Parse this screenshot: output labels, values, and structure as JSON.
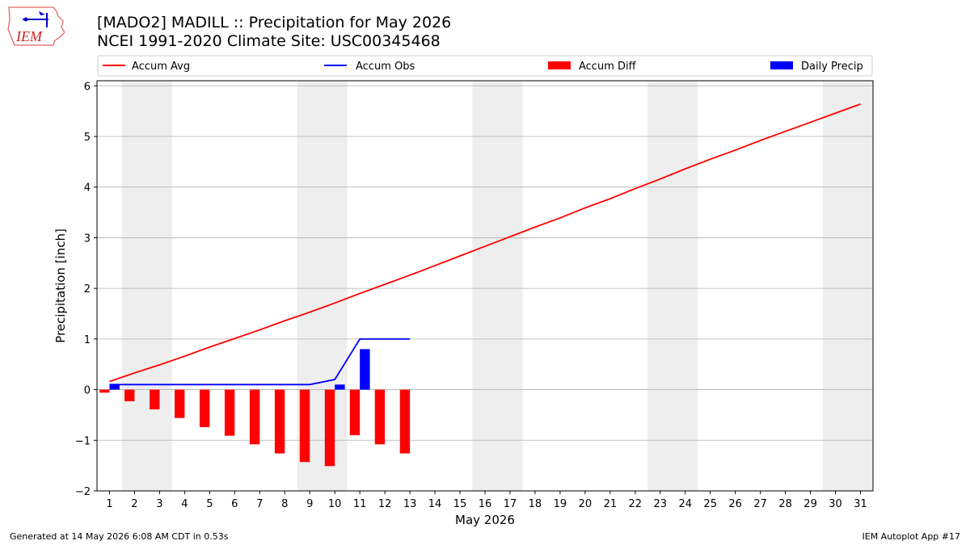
{
  "header": {
    "title_line1": "[MADO2] MADILL :: Precipitation for May 2026",
    "title_line2": "NCEI 1991-2020 Climate Site: USC00345468"
  },
  "logo": {
    "text": "IEM",
    "icon": "iem-state-logo"
  },
  "footer": {
    "generated": "Generated at 14 May 2026 6:08 AM CDT in 0.53s",
    "app": "IEM Autoplot App #17"
  },
  "colors": {
    "avg": "#ff0000",
    "obs": "#0000ff",
    "diff": "#ff0000",
    "daily": "#0000ff",
    "weekend_band": "#eeeeee",
    "grid": "#b0b0b0"
  },
  "chart_data": {
    "type": "bar",
    "title": "[MADO2] MADILL :: Precipitation for May 2026",
    "subtitle": "NCEI 1991-2020 Climate Site: USC00345468",
    "xlabel": "May 2026",
    "ylabel": "Precipitation [inch]",
    "xlim": [
      0.5,
      31.5
    ],
    "ylim": [
      -2,
      6.1
    ],
    "yticks": [
      -2,
      -1,
      0,
      1,
      2,
      3,
      4,
      5,
      6
    ],
    "ytick_labels": [
      "−2",
      "−1",
      "0",
      "1",
      "2",
      "3",
      "4",
      "5",
      "6"
    ],
    "days": [
      1,
      2,
      3,
      4,
      5,
      6,
      7,
      8,
      9,
      10,
      11,
      12,
      13,
      14,
      15,
      16,
      17,
      18,
      19,
      20,
      21,
      22,
      23,
      24,
      25,
      26,
      27,
      28,
      29,
      30,
      31
    ],
    "weekend_bands": [
      [
        2,
        3
      ],
      [
        9,
        10
      ],
      [
        16,
        17
      ],
      [
        23,
        24
      ],
      [
        30,
        31
      ]
    ],
    "grid": "y",
    "legend_position": "top",
    "series": [
      {
        "name": "Accum Avg",
        "kind": "line",
        "x": [
          1,
          2,
          3,
          4,
          5,
          6,
          7,
          8,
          9,
          10,
          11,
          12,
          13,
          14,
          15,
          16,
          17,
          18,
          19,
          20,
          21,
          22,
          23,
          24,
          25,
          26,
          27,
          28,
          29,
          30,
          31
        ],
        "values": [
          0.16,
          0.33,
          0.49,
          0.66,
          0.84,
          1.01,
          1.18,
          1.36,
          1.53,
          1.71,
          1.9,
          2.08,
          2.26,
          2.45,
          2.64,
          2.83,
          3.02,
          3.21,
          3.39,
          3.59,
          3.77,
          3.97,
          4.16,
          4.36,
          4.55,
          4.73,
          4.92,
          5.1,
          5.28,
          5.46,
          5.64
        ]
      },
      {
        "name": "Accum Obs",
        "kind": "line",
        "x": [
          1,
          2,
          3,
          4,
          5,
          6,
          7,
          8,
          9,
          10,
          11,
          12,
          13
        ],
        "values": [
          0.1,
          0.1,
          0.1,
          0.1,
          0.1,
          0.1,
          0.1,
          0.1,
          0.1,
          0.2,
          1.0,
          1.0,
          1.0
        ]
      },
      {
        "name": "Accum Diff",
        "kind": "bar",
        "x": [
          1,
          2,
          3,
          4,
          5,
          6,
          7,
          8,
          9,
          10,
          11,
          12,
          13
        ],
        "values": [
          -0.06,
          -0.23,
          -0.39,
          -0.56,
          -0.74,
          -0.91,
          -1.08,
          -1.26,
          -1.43,
          -1.51,
          -0.9,
          -1.08,
          -1.26
        ]
      },
      {
        "name": "Daily Precip",
        "kind": "bar",
        "x": [
          1,
          2,
          3,
          4,
          5,
          6,
          7,
          8,
          9,
          10,
          11,
          12,
          13
        ],
        "values": [
          0.1,
          0,
          0,
          0,
          0,
          0,
          0,
          0,
          0,
          0.1,
          0.8,
          0,
          0
        ]
      }
    ]
  }
}
